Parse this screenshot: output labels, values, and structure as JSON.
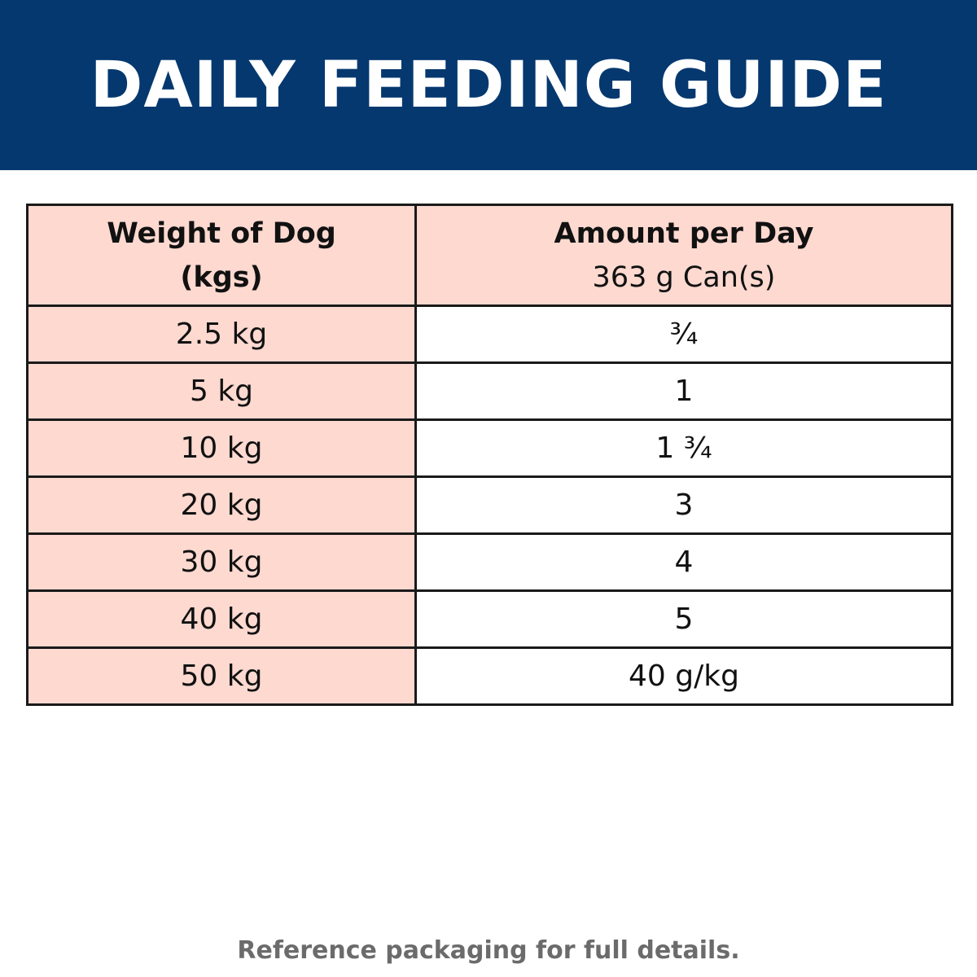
{
  "banner": {
    "title": "DAILY FEEDING GUIDE",
    "background_color": "#05386f"
  },
  "table": {
    "header": {
      "col1_line1": "Weight of Dog",
      "col1_line2": "(kgs)",
      "col2_line1": "Amount per Day",
      "col2_line2": "363 g Can(s)"
    },
    "rows": [
      {
        "weight": "2.5 kg",
        "amount": "¾"
      },
      {
        "weight": "5 kg",
        "amount": "1"
      },
      {
        "weight": "10 kg",
        "amount": "1 ¾"
      },
      {
        "weight": "20 kg",
        "amount": "3"
      },
      {
        "weight": "30 kg",
        "amount": "4"
      },
      {
        "weight": "40 kg",
        "amount": "5"
      },
      {
        "weight": "50 kg",
        "amount": "40 g/kg"
      }
    ],
    "highlight_color": "#fdd9d0"
  },
  "footer": {
    "note": "Reference packaging for full details."
  }
}
